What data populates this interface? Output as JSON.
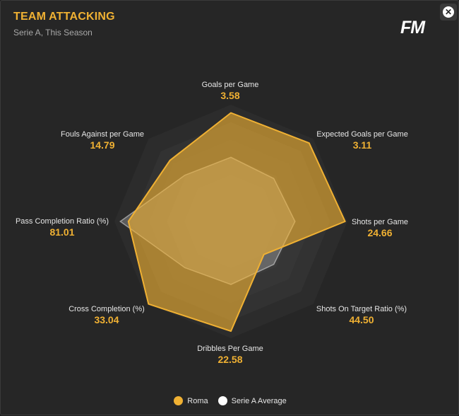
{
  "header": {
    "title": "TEAM ATTACKING",
    "subtitle": "Serie A, This Season",
    "logo": "FM",
    "close_glyph": "✕"
  },
  "colors": {
    "primary": "#f0b133",
    "secondary": "#cfcfcf",
    "background": "#262626"
  },
  "chart_data": {
    "type": "radar",
    "axes": [
      {
        "label": "Goals per Game",
        "value": "3.58"
      },
      {
        "label": "Expected Goals per Game",
        "value": "3.11"
      },
      {
        "label": "Shots per Game",
        "value": "24.66"
      },
      {
        "label": "Shots On Target Ratio (%)",
        "value": "44.50"
      },
      {
        "label": "Dribbles Per Game",
        "value": "22.58"
      },
      {
        "label": "Cross Completion (%)",
        "value": "33.04"
      },
      {
        "label": "Pass Completion Ratio (%)",
        "value": "81.01"
      },
      {
        "label": "Fouls Against per Game",
        "value": "14.79"
      }
    ],
    "series": [
      {
        "name": "Roma",
        "relative": [
          0.93,
          0.95,
          0.98,
          0.4,
          0.94,
          1.0,
          0.88,
          0.74
        ]
      },
      {
        "name": "Serie A Average",
        "relative": [
          0.55,
          0.52,
          0.55,
          0.52,
          0.54,
          0.56,
          0.95,
          0.56
        ]
      }
    ]
  },
  "legend": {
    "items": [
      {
        "label": "Roma",
        "color": "#f0b133"
      },
      {
        "label": "Serie A Average",
        "color": "#ffffff"
      }
    ]
  }
}
